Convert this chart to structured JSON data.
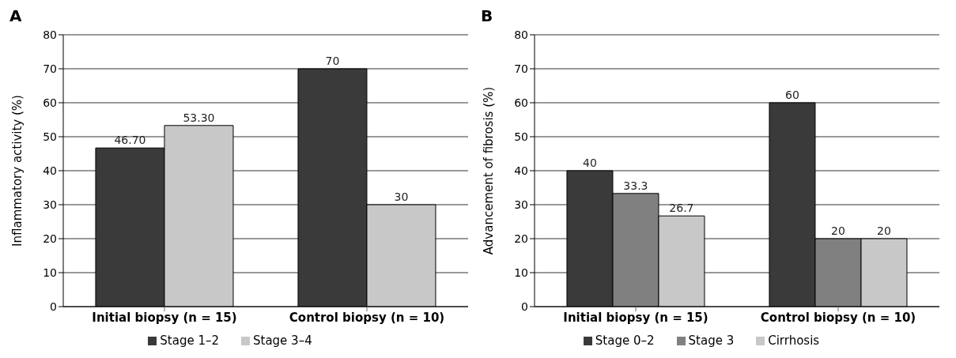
{
  "chart_data": [
    {
      "type": "bar",
      "title": "A",
      "ylabel": "Inflammatory activity (%)",
      "categories": [
        "Initial biopsy (n = 15)",
        "Control biopsy (n = 10)"
      ],
      "series": [
        {
          "name": "Stage 1–2",
          "color": "#3a3a3a",
          "values": [
            46.7,
            70
          ],
          "value_labels": [
            "46.70",
            "70"
          ]
        },
        {
          "name": "Stage 3–4",
          "color": "#c8c8c8",
          "values": [
            53.3,
            30
          ],
          "value_labels": [
            "53.30",
            "30"
          ]
        }
      ],
      "ylim": [
        0,
        80
      ],
      "yticks": [
        0,
        10,
        20,
        30,
        40,
        50,
        60,
        70,
        80
      ],
      "grid": "y",
      "legend": "bottom"
    },
    {
      "type": "bar",
      "title": "B",
      "ylabel": "Advancement of fibrosis (%)",
      "categories": [
        "Initial biopsy (n = 15)",
        "Control biopsy (n = 10)"
      ],
      "series": [
        {
          "name": "Stage 0–2",
          "color": "#3a3a3a",
          "values": [
            40,
            60
          ]
        },
        {
          "name": "Stage 3",
          "color": "#808080",
          "values": [
            33.3,
            20
          ]
        },
        {
          "name": "Cirrhosis",
          "color": "#c8c8c8",
          "values": [
            26.7,
            20
          ]
        }
      ],
      "ylim": [
        0,
        80
      ],
      "yticks": [
        0,
        10,
        20,
        30,
        40,
        50,
        60,
        70,
        80
      ],
      "grid": "y",
      "legend": "bottom",
      "data_labels": true
    }
  ]
}
